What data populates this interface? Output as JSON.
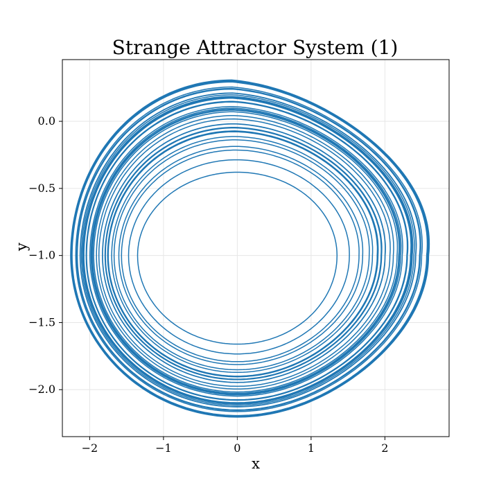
{
  "chart_data": {
    "type": "line",
    "title": "Strange Attractor System (1)",
    "xlabel": "x",
    "ylabel": "y",
    "xlim": [
      -2.37,
      2.87
    ],
    "ylim": [
      -2.35,
      0.46
    ],
    "xticks": [
      -2,
      -1,
      0,
      1,
      2
    ],
    "xtick_labels": [
      "−2",
      "−1",
      "0",
      "1",
      "2"
    ],
    "yticks": [
      0.0,
      -0.5,
      -1.0,
      -1.5,
      -2.0
    ],
    "ytick_labels": [
      "0.0",
      "−0.5",
      "−1.0",
      "−1.5",
      "−2.0"
    ],
    "grid": true,
    "color": "#1f77b4",
    "series": [
      {
        "x_range": [
          -2.3,
          2.65
        ],
        "y_range": [
          -2.22,
          0.33
        ],
        "center": [
          0,
          -1.0
        ],
        "inner_radius_x": 1.35,
        "outer_radius_x": 2.3,
        "outer_right_x": 2.65,
        "loops": 40
      }
    ]
  }
}
